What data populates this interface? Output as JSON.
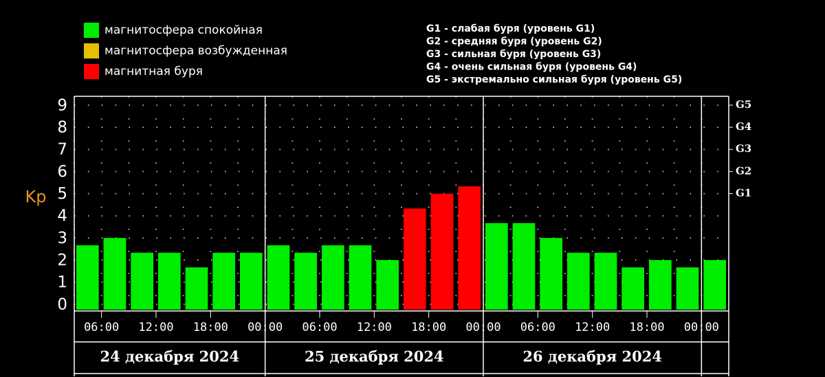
{
  "chart_data": {
    "type": "bar",
    "y_label": "Kp",
    "legend": [
      {
        "name": "магнитосфера спокойная",
        "color": "#00ee00"
      },
      {
        "name": "магнитосфера возбужденная",
        "color": "#e6c000"
      },
      {
        "name": "магнитная буря",
        "color": "#ff0000"
      }
    ],
    "g_legend": [
      "G1 - слабая буря (уровень G1)",
      "G2 - средняя буря (уровень G2)",
      "G3 - сильная буря (уровень G3)",
      "G4 - очень сильная буря (уровень G4)",
      "G5 - экстремально сильная буря (уровень G5)"
    ],
    "x": [
      3,
      6,
      9,
      12,
      15,
      18,
      21,
      24,
      27,
      30,
      33,
      36,
      39,
      42,
      45,
      48,
      51,
      54,
      57,
      60,
      63,
      66,
      69,
      72
    ],
    "values": [
      2.67,
      3,
      2.33,
      2.33,
      1.67,
      2.33,
      2.33,
      2.67,
      2.33,
      2.67,
      2.67,
      2,
      4.33,
      5,
      5.33,
      3.67,
      3.67,
      3,
      2.33,
      2.33,
      1.67,
      2,
      1.67,
      2
    ],
    "bar_colors": [
      "#00ee00",
      "#00ee00",
      "#00ee00",
      "#00ee00",
      "#00ee00",
      "#00ee00",
      "#00ee00",
      "#00ee00",
      "#00ee00",
      "#00ee00",
      "#00ee00",
      "#00ee00",
      "#ff0000",
      "#ff0000",
      "#ff0000",
      "#00ee00",
      "#00ee00",
      "#00ee00",
      "#00ee00",
      "#00ee00",
      "#00ee00",
      "#00ee00",
      "#00ee00",
      "#00ee00"
    ],
    "xlim": [
      3,
      75
    ],
    "xticks": [
      {
        "value": 6,
        "label": "06:00"
      },
      {
        "value": 12,
        "label": "12:00"
      },
      {
        "value": 18,
        "label": "18:00"
      },
      {
        "value": 24,
        "label": "00:00"
      },
      {
        "value": 30,
        "label": "06:00"
      },
      {
        "value": 36,
        "label": "12:00"
      },
      {
        "value": 42,
        "label": "18:00"
      },
      {
        "value": 48,
        "label": "00:00"
      },
      {
        "value": 54,
        "label": "06:00"
      },
      {
        "value": 60,
        "label": "12:00"
      },
      {
        "value": 66,
        "label": "18:00"
      },
      {
        "value": 72,
        "label": "00:00"
      }
    ],
    "days": [
      "24 декабря 2024",
      "25 декабря 2024",
      "26 декабря 2024"
    ],
    "ylim": [
      -0.3,
      9.4
    ],
    "yticks": [
      0,
      1,
      2,
      3,
      4,
      5,
      6,
      7,
      8,
      9
    ],
    "right_ticks": [
      {
        "value": 5,
        "label": "G1"
      },
      {
        "value": 6,
        "label": "G2"
      },
      {
        "value": 7,
        "label": "G3"
      },
      {
        "value": 8,
        "label": "G4"
      },
      {
        "value": 9,
        "label": "G5"
      }
    ],
    "grid": true
  }
}
